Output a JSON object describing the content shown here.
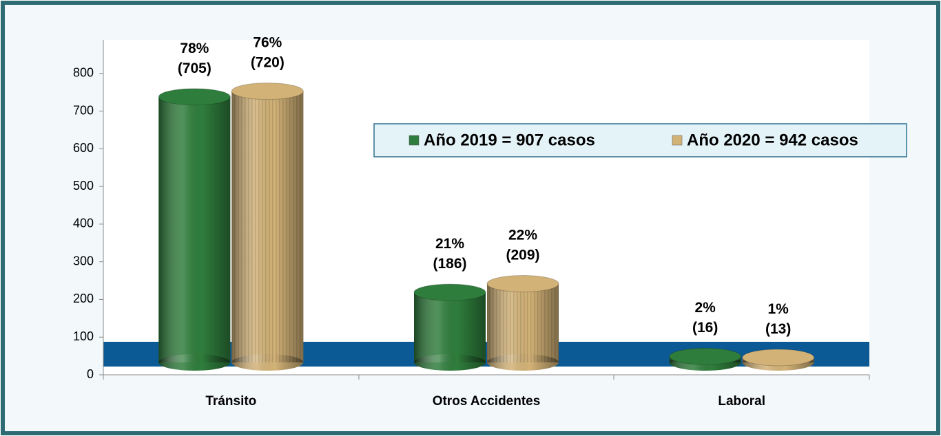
{
  "chart_data": {
    "type": "bar",
    "categories": [
      "Tránsito",
      "Otros Accidentes",
      "Laboral"
    ],
    "series": [
      {
        "name": "Año 2019 = 907 casos",
        "color": "#2f7d3c",
        "values": [
          705,
          186,
          16
        ],
        "value_labels": [
          "78%\n(705)",
          "21%\n(186)",
          "2%\n(16)"
        ]
      },
      {
        "name": "Año 2020 = 942 casos",
        "color": "#d2b277",
        "values": [
          720,
          209,
          13
        ],
        "value_labels": [
          "76%\n(720)",
          "22%\n(209)",
          "1%\n(13)"
        ]
      }
    ],
    "ylim": [
      0,
      900
    ],
    "yticks": [
      0,
      100,
      200,
      300,
      400,
      500,
      600,
      700,
      800
    ],
    "grid": false
  }
}
